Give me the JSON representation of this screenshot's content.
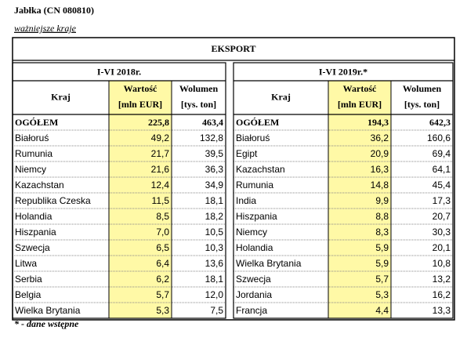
{
  "header": {
    "title": "Jabłka (CN 080810)",
    "subtitle": "ważniejsze kraje"
  },
  "table": {
    "title": "EKSPORT",
    "panels": [
      {
        "period": "I-VI 2018r.",
        "columns": [
          {
            "name": "Kraj"
          },
          {
            "name": "Wartość",
            "unit": "[mln EUR]"
          },
          {
            "name": "Wolumen",
            "unit": "[tys. ton]"
          }
        ],
        "total": [
          "OGÓŁEM",
          "225,8",
          "463,4"
        ],
        "rows": [
          [
            "Białoruś",
            "49,2",
            "132,8"
          ],
          [
            "Rumunia",
            "21,7",
            "39,5"
          ],
          [
            "Niemcy",
            "21,6",
            "36,3"
          ],
          [
            "Kazachstan",
            "12,4",
            "34,9"
          ],
          [
            "Republika Czeska",
            "11,5",
            "18,1"
          ],
          [
            "Holandia",
            "8,5",
            "18,2"
          ],
          [
            "Hiszpania",
            "7,0",
            "10,5"
          ],
          [
            "Szwecja",
            "6,5",
            "10,3"
          ],
          [
            "Litwa",
            "6,4",
            "13,6"
          ],
          [
            "Serbia",
            "6,2",
            "18,1"
          ],
          [
            "Belgia",
            "5,7",
            "12,0"
          ],
          [
            "Wielka Brytania",
            "5,3",
            "7,5"
          ]
        ]
      },
      {
        "period": "I-VI 2019r.*",
        "columns": [
          {
            "name": "Kraj"
          },
          {
            "name": "Wartość",
            "unit": "[mln EUR]"
          },
          {
            "name": "Wolumen",
            "unit": "[tys. ton]"
          }
        ],
        "total": [
          "OGÓŁEM",
          "194,3",
          "642,3"
        ],
        "rows": [
          [
            "Białoruś",
            "36,2",
            "160,6"
          ],
          [
            "Egipt",
            "20,9",
            "69,4"
          ],
          [
            "Kazachstan",
            "16,3",
            "64,1"
          ],
          [
            "Rumunia",
            "14,8",
            "45,4"
          ],
          [
            "India",
            "9,9",
            "17,3"
          ],
          [
            "Hiszpania",
            "8,8",
            "20,7"
          ],
          [
            "Niemcy",
            "8,3",
            "30,3"
          ],
          [
            "Holandia",
            "5,9",
            "20,1"
          ],
          [
            "Wielka Brytania",
            "5,9",
            "10,8"
          ],
          [
            "Szwecja",
            "5,7",
            "13,2"
          ],
          [
            "Jordania",
            "5,3",
            "16,2"
          ],
          [
            "Francja",
            "4,4",
            "13,3"
          ]
        ]
      }
    ]
  },
  "footnote": "* - dane wstępne"
}
